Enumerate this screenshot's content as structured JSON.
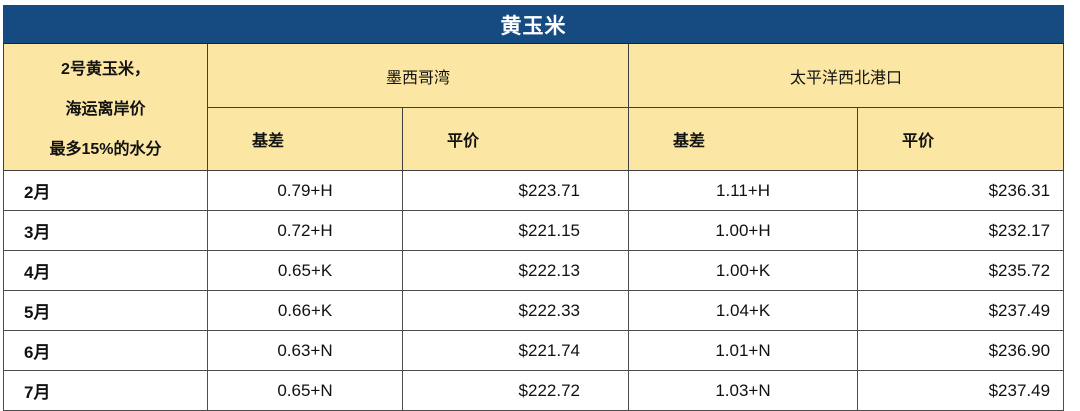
{
  "title": "黄玉米",
  "info_cell": {
    "lines": [
      "2号黄玉米，",
      "海运离岸价",
      "最多15%的水分"
    ]
  },
  "groups": [
    {
      "label": "墨西哥湾",
      "columns": [
        "基差",
        "平价"
      ]
    },
    {
      "label": "太平洋西北港口",
      "columns": [
        "基差",
        "平价"
      ]
    }
  ],
  "rows": [
    {
      "month": "2月",
      "cells": [
        "0.79+H",
        "$223.71",
        "1.11+H",
        "$236.31"
      ]
    },
    {
      "month": "3月",
      "cells": [
        "0.72+H",
        "$221.15",
        "1.00+H",
        "$232.17"
      ]
    },
    {
      "month": "4月",
      "cells": [
        "0.65+K",
        "$222.13",
        "1.00+K",
        "$235.72"
      ]
    },
    {
      "month": "5月",
      "cells": [
        "0.66+K",
        "$222.33",
        "1.04+K",
        "$237.49"
      ]
    },
    {
      "month": "6月",
      "cells": [
        "0.63+N",
        "$221.74",
        "1.01+N",
        "$236.90"
      ]
    },
    {
      "month": "7月",
      "cells": [
        "0.65+N",
        "$222.72",
        "1.03+N",
        "$237.49"
      ]
    }
  ],
  "colors": {
    "title_bg": "#164b82",
    "title_text": "#ffffff",
    "header_bg": "#fbe7a3",
    "body_bg": "#ffffff",
    "border": "#404040"
  }
}
